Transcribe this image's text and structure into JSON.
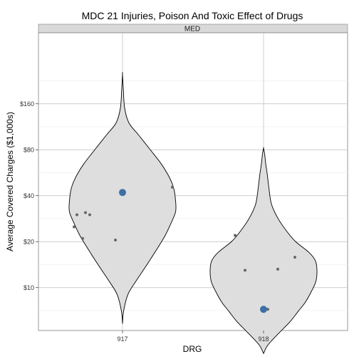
{
  "chart_data": {
    "type": "violin",
    "title": "MDC 21 Injuries, Poison And Toxic Effect of Drugs",
    "facet_label": "MED",
    "xlabel": "DRG",
    "ylabel": "Average Covered Charges ($1,000s)",
    "y_scale": "log",
    "y_ticks": [
      {
        "value": 10,
        "label": "$10"
      },
      {
        "value": 20,
        "label": "$20"
      },
      {
        "value": 40,
        "label": "$40"
      },
      {
        "value": 80,
        "label": "$80"
      },
      {
        "value": 160,
        "label": "$160"
      }
    ],
    "ylim": [
      3.3,
      350
    ],
    "categories": [
      "917",
      "918"
    ],
    "violin_fill": "#dedede",
    "violin_stroke": "#000000",
    "point_color": "#666666",
    "mean_color": "#3d6fa8",
    "series": [
      {
        "category": "917",
        "violin_range": [
          5.8,
          250
        ],
        "density_profile": [
          [
            5.8,
            0.0
          ],
          [
            7,
            0.02
          ],
          [
            9,
            0.1
          ],
          [
            11,
            0.25
          ],
          [
            14,
            0.45
          ],
          [
            18,
            0.65
          ],
          [
            22,
            0.8
          ],
          [
            27,
            0.92
          ],
          [
            31,
            0.99
          ],
          [
            34,
            1.0
          ],
          [
            38,
            0.99
          ],
          [
            43,
            0.97
          ],
          [
            48,
            0.93
          ],
          [
            55,
            0.85
          ],
          [
            65,
            0.72
          ],
          [
            80,
            0.52
          ],
          [
            100,
            0.3
          ],
          [
            120,
            0.12
          ],
          [
            150,
            0.04
          ],
          [
            200,
            0.015
          ],
          [
            250,
            0.0
          ]
        ],
        "points": [
          {
            "jitter": -0.34,
            "value": 25
          },
          {
            "jitter": -0.32,
            "value": 30
          },
          {
            "jitter": -0.28,
            "value": 21
          },
          {
            "jitter": -0.26,
            "value": 31
          },
          {
            "jitter": -0.23,
            "value": 30
          },
          {
            "jitter": -0.05,
            "value": 20.5
          },
          {
            "jitter": 0.35,
            "value": 45.5
          }
        ],
        "mean": 42
      },
      {
        "category": "918",
        "violin_range": [
          3.7,
          82
        ],
        "density_profile": [
          [
            3.7,
            0.0
          ],
          [
            4.2,
            0.08
          ],
          [
            5,
            0.28
          ],
          [
            6,
            0.5
          ],
          [
            7,
            0.65
          ],
          [
            8,
            0.78
          ],
          [
            9.5,
            0.9
          ],
          [
            11,
            0.98
          ],
          [
            13,
            1.0
          ],
          [
            15,
            0.97
          ],
          [
            17,
            0.85
          ],
          [
            20,
            0.6
          ],
          [
            23,
            0.45
          ],
          [
            28,
            0.28
          ],
          [
            35,
            0.15
          ],
          [
            45,
            0.1
          ],
          [
            55,
            0.07
          ],
          [
            65,
            0.04
          ],
          [
            75,
            0.02
          ],
          [
            82,
            0.0
          ]
        ],
        "points": [
          {
            "jitter": -0.2,
            "value": 22
          },
          {
            "jitter": -0.13,
            "value": 13
          },
          {
            "jitter": 0.03,
            "value": 7.2
          },
          {
            "jitter": 0.1,
            "value": 13.2
          },
          {
            "jitter": 0.22,
            "value": 15.8
          }
        ],
        "mean": 7.2
      }
    ]
  }
}
